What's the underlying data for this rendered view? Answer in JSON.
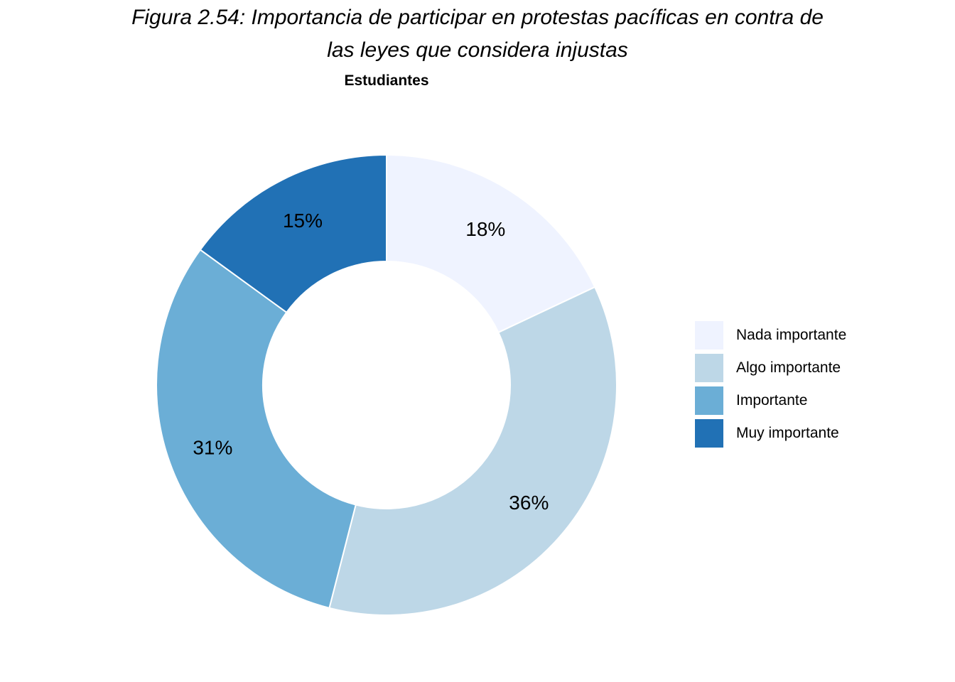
{
  "header": {
    "title_line1": "Figura 2.54: Importancia de participar en protestas pacíficas en contra de",
    "title_line2": "las leyes que considera injustas",
    "subtitle": "Estudiantes"
  },
  "chart_data": {
    "type": "pie",
    "style": "donut",
    "title": "Figura 2.54: Importancia de participar en protestas pacíficas en contra de las leyes que considera injustas",
    "subtitle": "Estudiantes",
    "categories": [
      "Nada importante",
      "Algo importante",
      "Importante",
      "Muy importante"
    ],
    "values": [
      18,
      36,
      31,
      15
    ],
    "value_labels": [
      "18%",
      "36%",
      "31%",
      "15%"
    ],
    "colors": [
      "#EFF3FF",
      "#BDD7E7",
      "#6BAED6",
      "#2171B5"
    ],
    "legend_position": "right",
    "start": "top, clockwise"
  },
  "legend": {
    "items": [
      {
        "label": "Nada importante",
        "color": "#EFF3FF"
      },
      {
        "label": "Algo importante",
        "color": "#BDD7E7"
      },
      {
        "label": "Importante",
        "color": "#6BAED6"
      },
      {
        "label": "Muy importante",
        "color": "#2171B5"
      }
    ]
  }
}
